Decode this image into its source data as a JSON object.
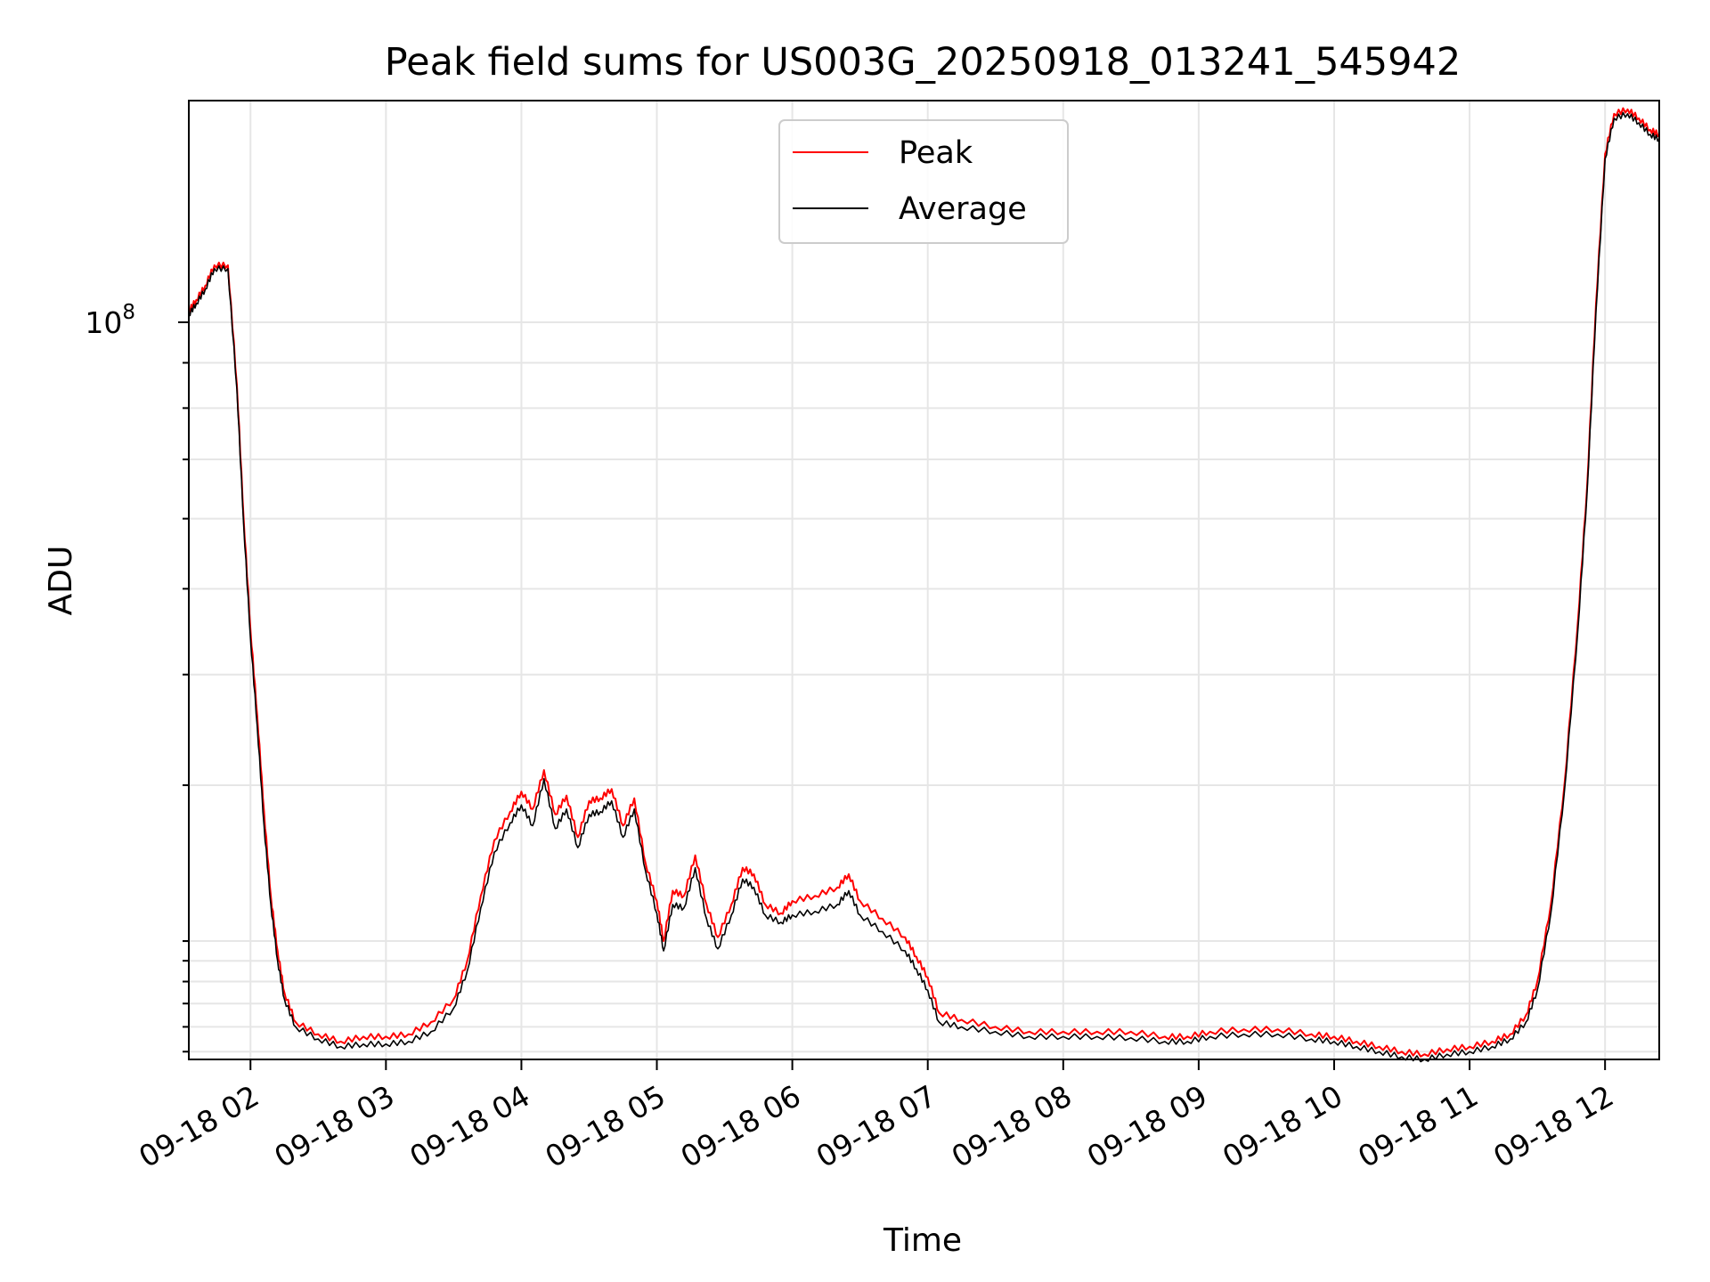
{
  "chart_data": {
    "type": "line",
    "title": "Peak field sums for US003G_20250918_013241_545942",
    "xlabel": "Time",
    "ylabel": "ADU",
    "yscale": "log",
    "grid": true,
    "legend_position": "top-center",
    "xlim": [
      "2025-09-18T01:32:41",
      "2025-09-18T12:24:00"
    ],
    "ylim": [
      14700000.0,
      178000000.0
    ],
    "x_ticks": [
      {
        "value": "2025-09-18T02:00",
        "label": "09-18 02"
      },
      {
        "value": "2025-09-18T03:00",
        "label": "09-18 03"
      },
      {
        "value": "2025-09-18T04:00",
        "label": "09-18 04"
      },
      {
        "value": "2025-09-18T05:00",
        "label": "09-18 05"
      },
      {
        "value": "2025-09-18T06:00",
        "label": "09-18 06"
      },
      {
        "value": "2025-09-18T07:00",
        "label": "09-18 07"
      },
      {
        "value": "2025-09-18T08:00",
        "label": "09-18 08"
      },
      {
        "value": "2025-09-18T09:00",
        "label": "09-18 09"
      },
      {
        "value": "2025-09-18T10:00",
        "label": "09-18 10"
      },
      {
        "value": "2025-09-18T11:00",
        "label": "09-18 11"
      },
      {
        "value": "2025-09-18T12:00",
        "label": "09-18 12"
      }
    ],
    "y_major_ticks": [
      {
        "value": 100000000,
        "base": "10",
        "exponent": "8"
      }
    ],
    "series": [
      {
        "name": "Peak",
        "color": "#ff0000",
        "points": [
          [
            "2025-09-18T01:32:41",
            103000000.0
          ],
          [
            "2025-09-18T01:36",
            106000000.0
          ],
          [
            "2025-09-18T01:40",
            110000000.0
          ],
          [
            "2025-09-18T01:44",
            116000000.0
          ],
          [
            "2025-09-18T01:50",
            116000000.0
          ],
          [
            "2025-09-18T01:54",
            85000000.0
          ],
          [
            "2025-09-18T01:57",
            60000000.0
          ],
          [
            "2025-09-18T02:00",
            45000000.0
          ],
          [
            "2025-09-18T02:03",
            36000000.0
          ],
          [
            "2025-09-18T02:06",
            28000000.0
          ],
          [
            "2025-09-18T02:09",
            22500000.0
          ],
          [
            "2025-09-18T02:12",
            19500000.0
          ],
          [
            "2025-09-18T02:15",
            17500000.0
          ],
          [
            "2025-09-18T02:20",
            16200000.0
          ],
          [
            "2025-09-18T02:30",
            15700000.0
          ],
          [
            "2025-09-18T02:40",
            15400000.0
          ],
          [
            "2025-09-18T02:50",
            15600000.0
          ],
          [
            "2025-09-18T03:00",
            15600000.0
          ],
          [
            "2025-09-18T03:10",
            15700000.0
          ],
          [
            "2025-09-18T03:20",
            16200000.0
          ],
          [
            "2025-09-18T03:30",
            17200000.0
          ],
          [
            "2025-09-18T03:36",
            19000000.0
          ],
          [
            "2025-09-18T03:42",
            22500000.0
          ],
          [
            "2025-09-18T03:48",
            26000000.0
          ],
          [
            "2025-09-18T03:55",
            28000000.0
          ],
          [
            "2025-09-18T04:00",
            29500000.0
          ],
          [
            "2025-09-18T04:05",
            28200000.0
          ],
          [
            "2025-09-18T04:10",
            31200000.0
          ],
          [
            "2025-09-18T04:15",
            27800000.0
          ],
          [
            "2025-09-18T04:20",
            29200000.0
          ],
          [
            "2025-09-18T04:25",
            26200000.0
          ],
          [
            "2025-09-18T04:30",
            28800000.0
          ],
          [
            "2025-09-18T04:35",
            29000000.0
          ],
          [
            "2025-09-18T04:40",
            29700000.0
          ],
          [
            "2025-09-18T04:45",
            27000000.0
          ],
          [
            "2025-09-18T04:50",
            29000000.0
          ],
          [
            "2025-09-18T04:55",
            24500000.0
          ],
          [
            "2025-09-18T05:00",
            22200000.0
          ],
          [
            "2025-09-18T05:03",
            20000000.0
          ],
          [
            "2025-09-18T05:07",
            22800000.0
          ],
          [
            "2025-09-18T05:12",
            22500000.0
          ],
          [
            "2025-09-18T05:17",
            25000000.0
          ],
          [
            "2025-09-18T05:22",
            22000000.0
          ],
          [
            "2025-09-18T05:27",
            20200000.0
          ],
          [
            "2025-09-18T05:33",
            22000000.0
          ],
          [
            "2025-09-18T05:38",
            24200000.0
          ],
          [
            "2025-09-18T05:43",
            23800000.0
          ],
          [
            "2025-09-18T05:48",
            22000000.0
          ],
          [
            "2025-09-18T05:55",
            21500000.0
          ],
          [
            "2025-09-18T06:00",
            22200000.0
          ],
          [
            "2025-09-18T06:10",
            22500000.0
          ],
          [
            "2025-09-18T06:20",
            23000000.0
          ],
          [
            "2025-09-18T06:25",
            23800000.0
          ],
          [
            "2025-09-18T06:30",
            22200000.0
          ],
          [
            "2025-09-18T06:40",
            21200000.0
          ],
          [
            "2025-09-18T06:50",
            20200000.0
          ],
          [
            "2025-09-18T06:55",
            19200000.0
          ],
          [
            "2025-09-18T07:00",
            18200000.0
          ],
          [
            "2025-09-18T07:05",
            16600000.0
          ],
          [
            "2025-09-18T07:15",
            16300000.0
          ],
          [
            "2025-09-18T07:30",
            16000000.0
          ],
          [
            "2025-09-18T07:45",
            15800000.0
          ],
          [
            "2025-09-18T08:00",
            15800000.0
          ],
          [
            "2025-09-18T08:15",
            15800000.0
          ],
          [
            "2025-09-18T08:30",
            15800000.0
          ],
          [
            "2025-09-18T08:45",
            15600000.0
          ],
          [
            "2025-09-18T08:55",
            15600000.0
          ],
          [
            "2025-09-18T09:05",
            15800000.0
          ],
          [
            "2025-09-18T09:20",
            15900000.0
          ],
          [
            "2025-09-18T09:35",
            15900000.0
          ],
          [
            "2025-09-18T09:50",
            15700000.0
          ],
          [
            "2025-09-18T10:00",
            15600000.0
          ],
          [
            "2025-09-18T10:10",
            15400000.0
          ],
          [
            "2025-09-18T10:20",
            15200000.0
          ],
          [
            "2025-09-18T10:30",
            15000000.0
          ],
          [
            "2025-09-18T10:40",
            14900000.0
          ],
          [
            "2025-09-18T10:50",
            15100000.0
          ],
          [
            "2025-09-18T11:00",
            15200000.0
          ],
          [
            "2025-09-18T11:10",
            15400000.0
          ],
          [
            "2025-09-18T11:18",
            15700000.0
          ],
          [
            "2025-09-18T11:25",
            16500000.0
          ],
          [
            "2025-09-18T11:30",
            18000000.0
          ],
          [
            "2025-09-18T11:36",
            22000000.0
          ],
          [
            "2025-09-18T11:42",
            30000000.0
          ],
          [
            "2025-09-18T11:48",
            46000000.0
          ],
          [
            "2025-09-18T11:52",
            65000000.0
          ],
          [
            "2025-09-18T11:56",
            105000000.0
          ],
          [
            "2025-09-18T12:00",
            155000000.0
          ],
          [
            "2025-09-18T12:04",
            172000000.0
          ],
          [
            "2025-09-18T12:10",
            174000000.0
          ],
          [
            "2025-09-18T12:15",
            170000000.0
          ],
          [
            "2025-09-18T12:20",
            165000000.0
          ],
          [
            "2025-09-18T12:24",
            163000000.0
          ]
        ]
      },
      {
        "name": "Average",
        "color": "#000000",
        "points": [
          [
            "2025-09-18T01:32:41",
            102000000.0
          ],
          [
            "2025-09-18T01:36",
            105000000.0
          ],
          [
            "2025-09-18T01:40",
            109000000.0
          ],
          [
            "2025-09-18T01:44",
            115000000.0
          ],
          [
            "2025-09-18T01:50",
            115000000.0
          ],
          [
            "2025-09-18T01:54",
            84000000.0
          ],
          [
            "2025-09-18T01:57",
            59000000.0
          ],
          [
            "2025-09-18T02:00",
            44000000.0
          ],
          [
            "2025-09-18T02:03",
            35000000.0
          ],
          [
            "2025-09-18T02:06",
            27000000.0
          ],
          [
            "2025-09-18T02:09",
            22000000.0
          ],
          [
            "2025-09-18T02:12",
            19000000.0
          ],
          [
            "2025-09-18T02:15",
            17200000.0
          ],
          [
            "2025-09-18T02:20",
            16000000.0
          ],
          [
            "2025-09-18T02:30",
            15500000.0
          ],
          [
            "2025-09-18T02:40",
            15200000.0
          ],
          [
            "2025-09-18T02:50",
            15300000.0
          ],
          [
            "2025-09-18T03:00",
            15300000.0
          ],
          [
            "2025-09-18T03:10",
            15400000.0
          ],
          [
            "2025-09-18T03:20",
            15800000.0
          ],
          [
            "2025-09-18T03:30",
            16800000.0
          ],
          [
            "2025-09-18T03:36",
            18500000.0
          ],
          [
            "2025-09-18T03:42",
            21800000.0
          ],
          [
            "2025-09-18T03:48",
            25200000.0
          ],
          [
            "2025-09-18T03:55",
            27200000.0
          ],
          [
            "2025-09-18T04:00",
            28500000.0
          ],
          [
            "2025-09-18T04:05",
            27000000.0
          ],
          [
            "2025-09-18T04:10",
            30500000.0
          ],
          [
            "2025-09-18T04:15",
            26800000.0
          ],
          [
            "2025-09-18T04:20",
            28200000.0
          ],
          [
            "2025-09-18T04:25",
            25500000.0
          ],
          [
            "2025-09-18T04:30",
            27800000.0
          ],
          [
            "2025-09-18T04:35",
            28000000.0
          ],
          [
            "2025-09-18T04:40",
            28800000.0
          ],
          [
            "2025-09-18T04:45",
            26200000.0
          ],
          [
            "2025-09-18T04:50",
            28200000.0
          ],
          [
            "2025-09-18T04:55",
            24000000.0
          ],
          [
            "2025-09-18T05:00",
            21500000.0
          ],
          [
            "2025-09-18T05:03",
            19500000.0
          ],
          [
            "2025-09-18T05:07",
            22000000.0
          ],
          [
            "2025-09-18T05:12",
            21800000.0
          ],
          [
            "2025-09-18T05:17",
            24200000.0
          ],
          [
            "2025-09-18T05:22",
            21200000.0
          ],
          [
            "2025-09-18T05:27",
            19600000.0
          ],
          [
            "2025-09-18T05:33",
            21400000.0
          ],
          [
            "2025-09-18T05:38",
            23500000.0
          ],
          [
            "2025-09-18T05:43",
            23000000.0
          ],
          [
            "2025-09-18T05:48",
            21400000.0
          ],
          [
            "2025-09-18T05:55",
            21000000.0
          ],
          [
            "2025-09-18T06:00",
            21400000.0
          ],
          [
            "2025-09-18T06:10",
            21600000.0
          ],
          [
            "2025-09-18T06:20",
            22000000.0
          ],
          [
            "2025-09-18T06:25",
            22800000.0
          ],
          [
            "2025-09-18T06:30",
            21400000.0
          ],
          [
            "2025-09-18T06:40",
            20500000.0
          ],
          [
            "2025-09-18T06:50",
            19500000.0
          ],
          [
            "2025-09-18T06:55",
            18600000.0
          ],
          [
            "2025-09-18T07:00",
            17600000.0
          ],
          [
            "2025-09-18T07:05",
            16200000.0
          ],
          [
            "2025-09-18T07:15",
            16000000.0
          ],
          [
            "2025-09-18T07:30",
            15800000.0
          ],
          [
            "2025-09-18T07:45",
            15600000.0
          ],
          [
            "2025-09-18T08:00",
            15600000.0
          ],
          [
            "2025-09-18T08:15",
            15600000.0
          ],
          [
            "2025-09-18T08:30",
            15550000.0
          ],
          [
            "2025-09-18T08:45",
            15400000.0
          ],
          [
            "2025-09-18T08:55",
            15400000.0
          ],
          [
            "2025-09-18T09:05",
            15600000.0
          ],
          [
            "2025-09-18T09:20",
            15700000.0
          ],
          [
            "2025-09-18T09:35",
            15700000.0
          ],
          [
            "2025-09-18T09:50",
            15500000.0
          ],
          [
            "2025-09-18T10:00",
            15400000.0
          ],
          [
            "2025-09-18T10:10",
            15200000.0
          ],
          [
            "2025-09-18T10:20",
            15000000.0
          ],
          [
            "2025-09-18T10:30",
            14800000.0
          ],
          [
            "2025-09-18T10:40",
            14700000.0
          ],
          [
            "2025-09-18T10:50",
            14900000.0
          ],
          [
            "2025-09-18T11:00",
            15000000.0
          ],
          [
            "2025-09-18T11:10",
            15200000.0
          ],
          [
            "2025-09-18T11:18",
            15500000.0
          ],
          [
            "2025-09-18T11:25",
            16200000.0
          ],
          [
            "2025-09-18T11:30",
            17600000.0
          ],
          [
            "2025-09-18T11:36",
            21500000.0
          ],
          [
            "2025-09-18T11:42",
            29500000.0
          ],
          [
            "2025-09-18T11:48",
            45000000.0
          ],
          [
            "2025-09-18T11:52",
            64000000.0
          ],
          [
            "2025-09-18T11:56",
            103000000.0
          ],
          [
            "2025-09-18T12:00",
            153000000.0
          ],
          [
            "2025-09-18T12:04",
            170000000.0
          ],
          [
            "2025-09-18T12:10",
            172000000.0
          ],
          [
            "2025-09-18T12:15",
            168000000.0
          ],
          [
            "2025-09-18T12:20",
            163000000.0
          ],
          [
            "2025-09-18T12:24",
            161000000.0
          ]
        ]
      }
    ]
  }
}
